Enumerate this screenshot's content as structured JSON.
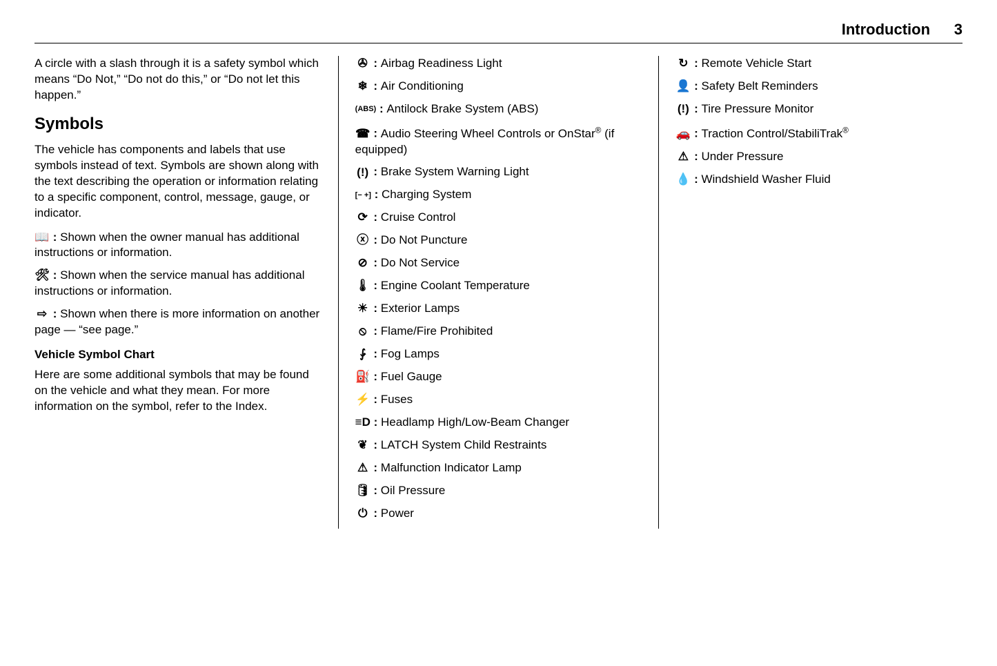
{
  "header": {
    "title": "Introduction",
    "page": "3"
  },
  "intro_para": "A circle with a slash through it is a safety symbol which means “Do Not,” “Do not do this,” or “Do not let this happen.”",
  "symbols_heading": "Symbols",
  "symbols_para": "The vehicle has components and labels that use symbols instead of text. Symbols are shown along with the text describing the operation or information relating to a specific component, control, message, gauge, or indicator.",
  "defs": [
    {
      "glyph": "📖",
      "text": "Shown when the owner manual has additional instructions or information."
    },
    {
      "glyph": "🛠",
      "text": "Shown when the service manual has additional instructions or information."
    },
    {
      "glyph": "⇨",
      "text": "Shown when there is more information on another page — “see page.”"
    }
  ],
  "chart_heading": "Vehicle Symbol Chart",
  "chart_para": "Here are some additional symbols that may be found on the vehicle and what they mean. For more information on the symbol, refer to the Index.",
  "col2": [
    {
      "glyph": "✇",
      "label": "Airbag Readiness Light"
    },
    {
      "glyph": "❄",
      "label": "Air Conditioning"
    },
    {
      "glyph": "(ABS)",
      "label": "Antilock Brake System (ABS)",
      "small": true
    },
    {
      "glyph": "☎",
      "label": "Audio Steering Wheel Controls or OnStar® (if equipped)"
    },
    {
      "glyph": "(!)",
      "label": "Brake System Warning Light"
    },
    {
      "glyph": "[− +]",
      "label": "Charging System",
      "small": true
    },
    {
      "glyph": "⟳",
      "label": "Cruise Control"
    },
    {
      "glyph": "ⓧ",
      "label": "Do Not Puncture"
    },
    {
      "glyph": "⊘",
      "label": "Do Not Service"
    },
    {
      "glyph": "🌡",
      "label": "Engine Coolant Temperature"
    },
    {
      "glyph": "☀",
      "label": "Exterior Lamps"
    },
    {
      "glyph": "⦸",
      "label": "Flame/Fire Prohibited"
    },
    {
      "glyph": "⨑",
      "label": "Fog Lamps"
    },
    {
      "glyph": "⛽",
      "label": "Fuel Gauge"
    },
    {
      "glyph": "⚡",
      "label": "Fuses"
    },
    {
      "glyph": "≡D",
      "label": "Headlamp High/Low-Beam Changer"
    },
    {
      "glyph": "❦",
      "label": "LATCH System Child Restraints"
    },
    {
      "glyph": "⚠",
      "label": "Malfunction Indicator Lamp"
    },
    {
      "glyph": "🛢",
      "label": "Oil Pressure"
    },
    {
      "glyph": "⏻",
      "label": "Power"
    }
  ],
  "col3": [
    {
      "glyph": "↻",
      "label": "Remote Vehicle Start"
    },
    {
      "glyph": "👤",
      "label": "Safety Belt Reminders"
    },
    {
      "glyph": "(!)",
      "label": "Tire Pressure Monitor"
    },
    {
      "glyph": "🚗",
      "label": "Traction Control/StabiliTrak®"
    },
    {
      "glyph": "⚠",
      "label": "Under Pressure"
    },
    {
      "glyph": "💧",
      "label": "Windshield Washer Fluid"
    }
  ]
}
